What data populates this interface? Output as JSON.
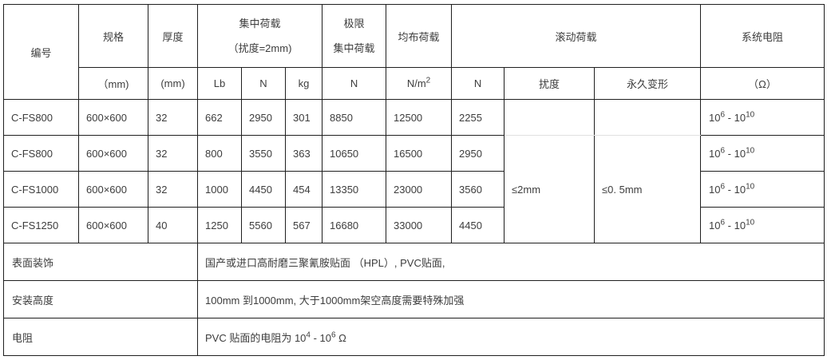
{
  "table": {
    "header": {
      "col_id": "编号",
      "spec": {
        "title": "规格",
        "unit": "（mm)"
      },
      "thickness": {
        "title": "厚度",
        "unit": "(mm)"
      },
      "concentrated": {
        "title": "集中荷载",
        "subtitle": "（扰度=2mm)",
        "units": [
          "Lb",
          "N",
          "kg"
        ]
      },
      "ultimate": {
        "line1": "极限",
        "line2": "集中荷载",
        "unit": "N"
      },
      "uniform": {
        "title": "均布荷载",
        "unit": "N/m^2"
      },
      "rolling": {
        "title": "滚动荷载",
        "units": [
          "N",
          "扰度",
          "永久变形"
        ]
      },
      "resistance": {
        "title": "系统电阻",
        "unit": "（Ω）"
      }
    },
    "rows": [
      {
        "id": "C-FS800",
        "spec": "600×600",
        "thickness": "32",
        "lb": "662",
        "n": "2950",
        "kg": "301",
        "ultimate": "8850",
        "uniform": "12500",
        "rolling_n": "2255",
        "resistance": "10^6 - 10^10"
      },
      {
        "id": "C-FS800",
        "spec": "600×600",
        "thickness": "32",
        "lb": "800",
        "n": "3550",
        "kg": "363",
        "ultimate": "10650",
        "uniform": "16500",
        "rolling_n": "2950",
        "resistance": "10^6 - 10^10"
      },
      {
        "id": "C-FS1000",
        "spec": "600×600",
        "thickness": "32",
        "lb": "1000",
        "n": "4450",
        "kg": "454",
        "ultimate": "13350",
        "uniform": "23000",
        "rolling_n": "3560",
        "resistance": "10^6 - 10^10"
      },
      {
        "id": "C-FS1250",
        "spec": "600×600",
        "thickness": "40",
        "lb": "1250",
        "n": "5560",
        "kg": "567",
        "ultimate": "16680",
        "uniform": "33000",
        "rolling_n": "4450",
        "resistance": "10^6 - 10^10"
      }
    ],
    "rolling_merged": {
      "deflection": "≤2mm",
      "permanent_deformation": "≤0. 5mm"
    },
    "footer_rows": [
      {
        "label": "表面装饰",
        "value": "国产或进口高耐磨三聚氰胺贴面 （HPL）, PVC贴面,"
      },
      {
        "label": "安装高度",
        "value": "100mm 到1000mm, 大于1000mm架空高度需要特殊加强"
      },
      {
        "label": "电阻",
        "value": "PVC 贴面的电阻为 10^4 - 10^6 Ω"
      }
    ]
  },
  "colors": {
    "border_dark": "#1f1f1f",
    "border_light": "#e0e0e0",
    "text": "#3d3d3d",
    "background": "#ffffff"
  }
}
